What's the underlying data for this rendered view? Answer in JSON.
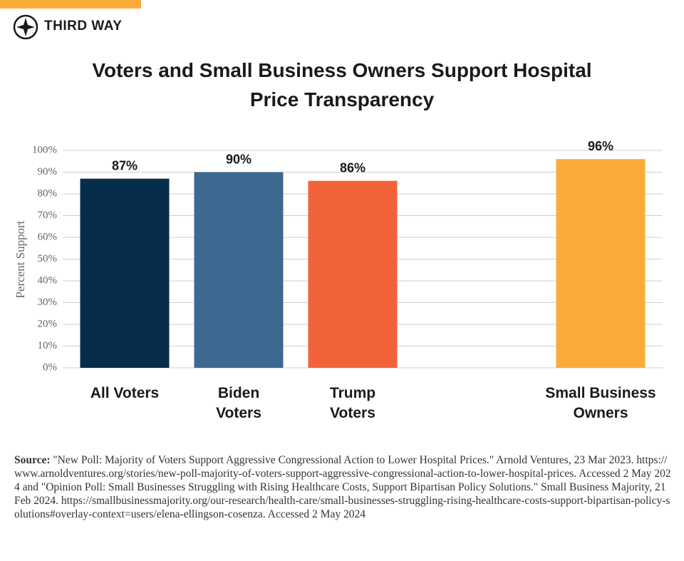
{
  "header": {
    "brand": "THIRD WAY"
  },
  "chart_data": {
    "type": "bar",
    "title": "Voters and Small Business Owners Support Hospital Price Transparency",
    "ylabel": "Percent Support",
    "categories": [
      "All Voters",
      "Biden Voters",
      "Trump Voters",
      "Small Business Owners"
    ],
    "values": [
      87,
      90,
      86,
      96
    ],
    "value_labels": [
      "87%",
      "90%",
      "86%",
      "96%"
    ],
    "colors": [
      "#062e4a",
      "#3d6890",
      "#f2623a",
      "#fbab3a"
    ],
    "ylim": [
      0,
      100
    ],
    "yticks": [
      {
        "value": 0,
        "label": "0%"
      },
      {
        "value": 10,
        "label": "10%"
      },
      {
        "value": 20,
        "label": "20%"
      },
      {
        "value": 30,
        "label": "30%"
      },
      {
        "value": 40,
        "label": "40%"
      },
      {
        "value": 50,
        "label": "50%"
      },
      {
        "value": 60,
        "label": "60%"
      },
      {
        "value": 70,
        "label": "70%"
      },
      {
        "value": 80,
        "label": "80%"
      },
      {
        "value": 90,
        "label": "90%"
      },
      {
        "value": 100,
        "label": "100%"
      }
    ],
    "grid": true
  },
  "source": {
    "label": "Source:",
    "text": "\"New Poll: Majority of Voters Support Aggressive Congressional Action to Lower Hospital Prices.\" Arnold Ventures, 23 Mar 2023. https://www.arnoldventures.org/stories/new-poll-majority-of-voters-support-aggressive-congressional-action-to-lower-hospital-prices. Accessed 2 May 2024 and \"Opinion Poll: Small Businesses Struggling with Rising Healthcare Costs, Support Bipartisan Policy Solutions.\" Small Business Majority, 21 Feb 2024. https://smallbusinessmajority.org/our-research/health-care/small-businesses-struggling-rising-healthcare-costs-support-bipartisan-policy-solutions#overlay-context=users/elena-ellingson-cosenza. Accessed 2 May 2024"
  }
}
